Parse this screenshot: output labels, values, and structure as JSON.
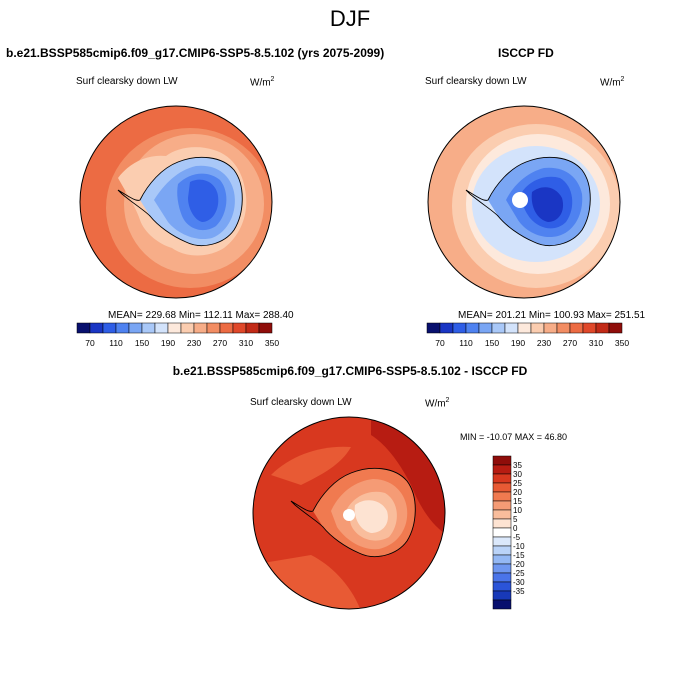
{
  "season_title": "DJF",
  "panels": [
    {
      "title": "b.e21.BSSP585cmip6.f09_g17.CMIP6-SSP5-8.5.102 (yrs 2075-2099)",
      "variable": "Surf clearsky down LW",
      "units_base": "W/m",
      "units_exp": "2",
      "stats": "MEAN= 229.68  Min= 112.11  Max= 288.40"
    },
    {
      "title": "ISCCP FD",
      "variable": "Surf clearsky down LW",
      "units_base": "W/m",
      "units_exp": "2",
      "stats": "MEAN= 201.21  Min= 100.93  Max= 251.51"
    },
    {
      "title": "b.e21.BSSP585cmip6.f09_g17.CMIP6-SSP5-8.5.102 - ISCCP FD",
      "variable": "Surf clearsky down LW",
      "units_base": "W/m",
      "units_exp": "2",
      "stats": "MIN = -10.07 MAX =  46.80"
    }
  ],
  "colorbar_abs": {
    "colors": [
      "#08106e",
      "#1a36c4",
      "#2f5ee6",
      "#4f82f0",
      "#7aa6f4",
      "#a9c8f8",
      "#d3e3fb",
      "#fde9dc",
      "#fbcdb0",
      "#f7ad88",
      "#f28d63",
      "#ec6b43",
      "#e0482a",
      "#c22a17",
      "#8f0d0a"
    ],
    "labels": [
      "70",
      "110",
      "150",
      "190",
      "230",
      "270",
      "310",
      "350"
    ]
  },
  "colorbar_diff": {
    "colors": [
      "#8f0d0a",
      "#b71c12",
      "#d8381f",
      "#e85a34",
      "#f07a50",
      "#f59b75",
      "#f9bd9c",
      "#fde3d2",
      "#ffffff",
      "#dbe8fb",
      "#bad3f8",
      "#94b8f4",
      "#6f97f0",
      "#4a74e9",
      "#2b54d8",
      "#1839b8",
      "#08106e"
    ],
    "labels": [
      "35",
      "30",
      "25",
      "20",
      "15",
      "10",
      "5",
      "0",
      "-5",
      "-10",
      "-15",
      "-20",
      "-25",
      "-30",
      "-35"
    ]
  },
  "map_colors": {
    "outer_a": "#ec6b43",
    "ring_a": "#f28d63",
    "inner_a": "#f7ad88",
    "shelf_a": "#fbcdb0",
    "outer_b": "#f7ad88",
    "ring_b": "#fbcdb0",
    "inner_b": "#fde9dc",
    "shelf_b": "#d3e3fb",
    "ice_1": "#a9c8f8",
    "ice_2": "#7aa6f4",
    "ice_3": "#4f82f0",
    "ice_4": "#2f5ee6",
    "ice_5": "#1a36c4",
    "diff_1": "#b71c12",
    "diff_2": "#d8381f",
    "diff_3": "#e85a34",
    "diff_4": "#f07a50",
    "diff_5": "#f59b75",
    "diff_6": "#f9bd9c",
    "diff_7": "#fde3d2",
    "pole": "#ffffff"
  }
}
